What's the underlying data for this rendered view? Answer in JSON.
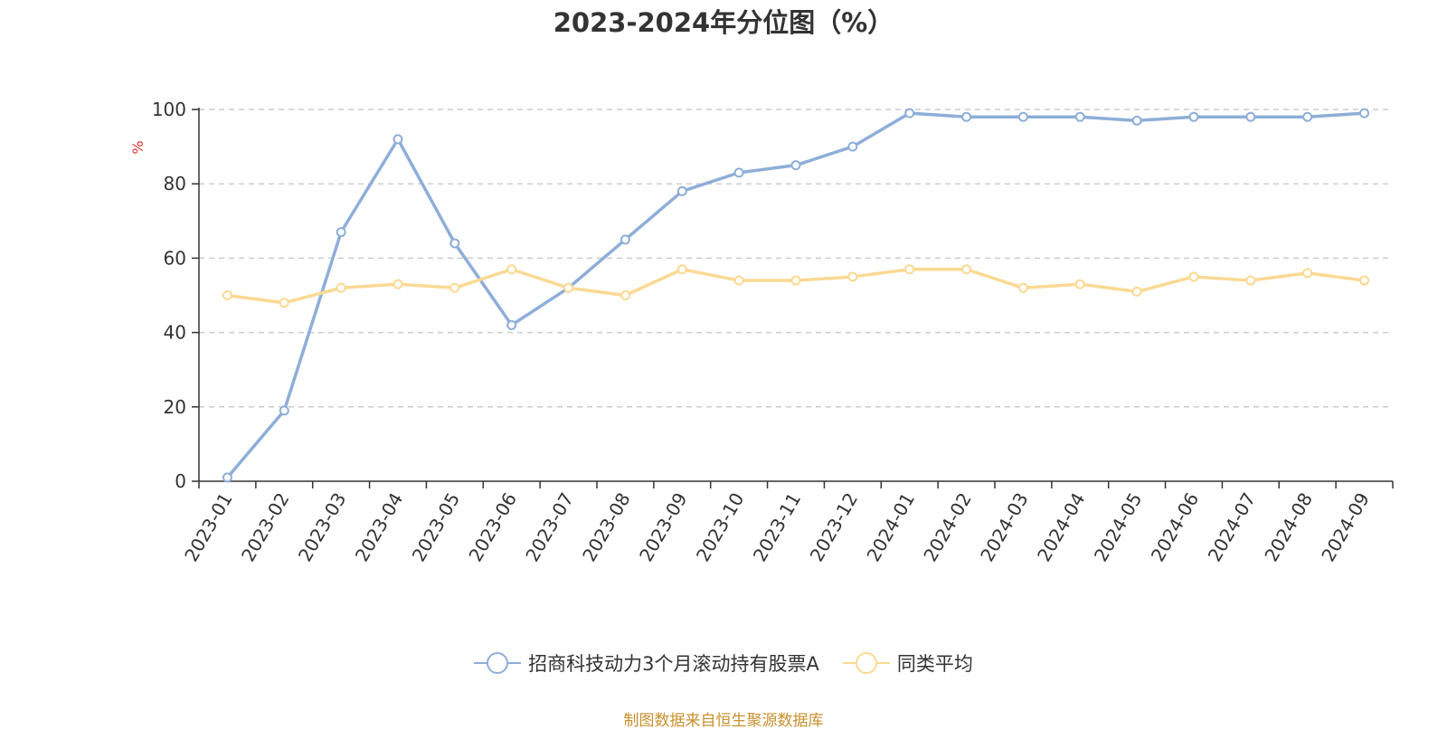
{
  "chart_data": {
    "type": "line",
    "title": "2023-2024年分位图（%）",
    "ylabel": "%",
    "xlabel": "",
    "ylim": [
      0,
      100
    ],
    "yticks": [
      0,
      20,
      40,
      60,
      80,
      100
    ],
    "grid": "horizontal dashed",
    "legend_position": "bottom-center",
    "categories": [
      "2023-01",
      "2023-02",
      "2023-03",
      "2023-04",
      "2023-05",
      "2023-06",
      "2023-07",
      "2023-08",
      "2023-09",
      "2023-10",
      "2023-11",
      "2023-12",
      "2024-01",
      "2024-02",
      "2024-03",
      "2024-04",
      "2024-05",
      "2024-06",
      "2024-07",
      "2024-08",
      "2024-09"
    ],
    "series": [
      {
        "name": "招商科技动力3个月滚动持有股票A",
        "color": "#8eaed8",
        "values": [
          1,
          19,
          67,
          92,
          64,
          42,
          52,
          65,
          78,
          83,
          85,
          90,
          99,
          98,
          98,
          98,
          97,
          98,
          98,
          98,
          99
        ]
      },
      {
        "name": "同类平均",
        "color": "#fbd993",
        "values": [
          50,
          48,
          52,
          53,
          52,
          57,
          52,
          50,
          57,
          54,
          54,
          55,
          57,
          57,
          52,
          53,
          51,
          55,
          54,
          56,
          54
        ]
      }
    ]
  },
  "footer": {
    "source": "制图数据来自恒生聚源数据库"
  }
}
